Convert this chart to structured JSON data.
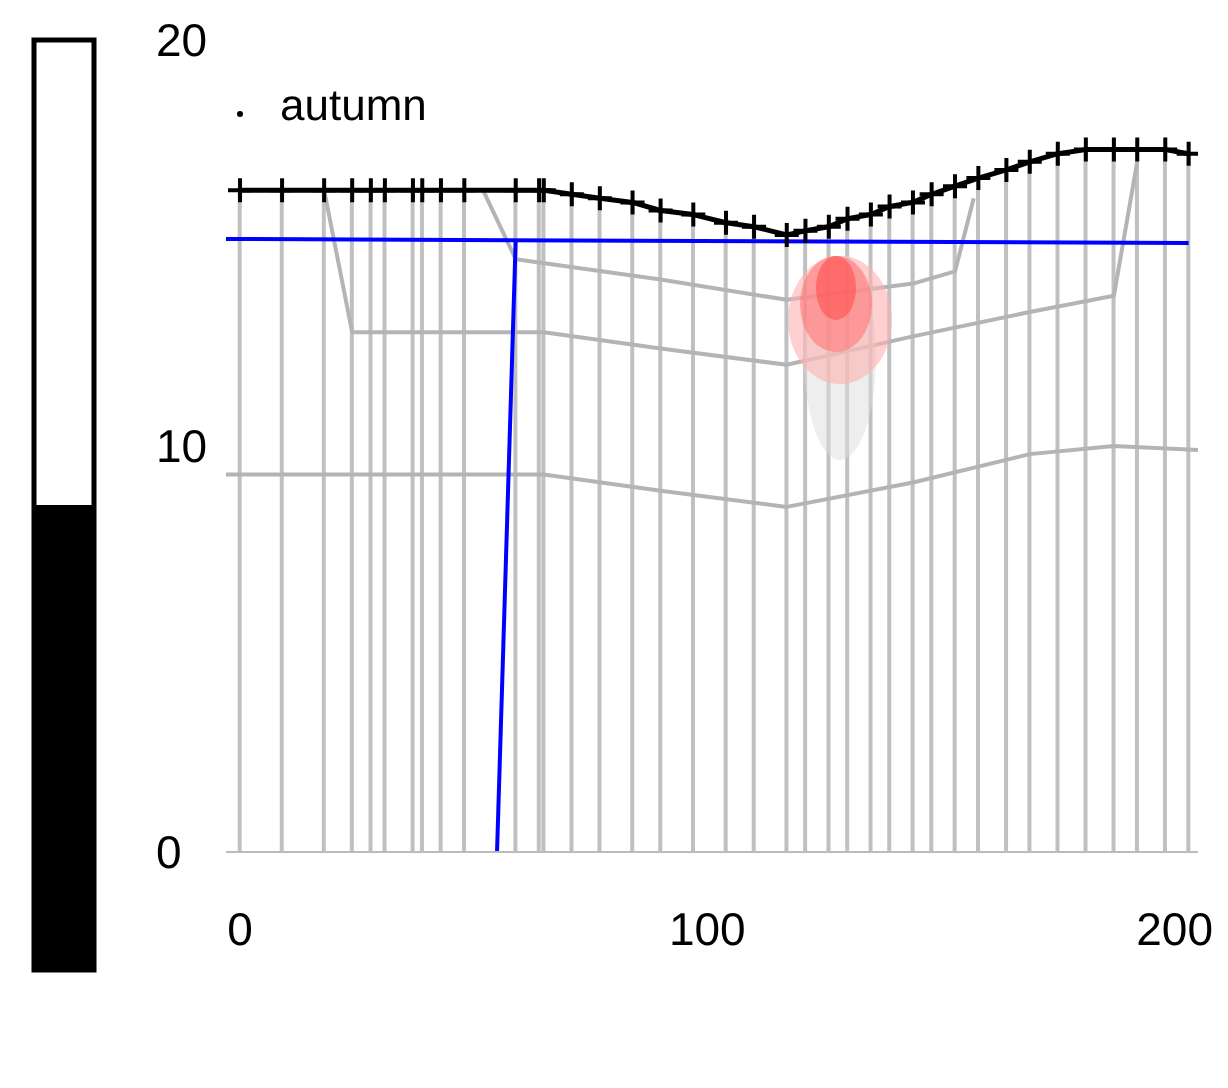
{
  "chart_data": {
    "type": "line",
    "annotations": [
      "autumn"
    ],
    "xlim": [
      -3,
      205
    ],
    "xticks": [
      0,
      100,
      200
    ],
    "ylim": [
      0,
      20
    ],
    "yticks": [
      0,
      10,
      20
    ],
    "series": [
      {
        "type": "bar",
        "color": "#c0c0c0",
        "x": [
          0,
          9,
          18,
          24,
          28,
          31,
          37,
          39,
          43,
          48,
          59,
          64,
          65,
          71,
          77,
          84,
          90,
          97,
          104,
          110,
          117,
          121,
          126,
          130,
          135,
          139,
          144,
          148,
          153,
          158,
          164,
          169,
          175,
          181,
          187,
          192,
          198,
          203
        ],
        "values": [
          16.3,
          16.3,
          16.3,
          16.3,
          16.3,
          16.3,
          16.3,
          16.3,
          16.3,
          16.3,
          16.3,
          16.3,
          16.3,
          16.2,
          16.1,
          16.0,
          15.8,
          15.7,
          15.5,
          15.4,
          15.2,
          15.3,
          15.4,
          15.6,
          15.7,
          15.9,
          16.0,
          16.2,
          16.4,
          16.6,
          16.8,
          17.0,
          17.2,
          17.3,
          17.3,
          17.3,
          17.3,
          17.2
        ]
      },
      {
        "color": "#b4b4b4",
        "marker": "none",
        "x": [
          -3,
          65,
          90,
          117,
          144,
          169,
          187,
          205
        ],
        "values": [
          9.3,
          9.3,
          8.9,
          8.5,
          9.1,
          9.8,
          10.0,
          9.9
        ]
      },
      {
        "color": "#b4b4b4",
        "marker": "none",
        "x": [
          18,
          24,
          65,
          90,
          117,
          144,
          169,
          187,
          192
        ],
        "values": [
          16.3,
          12.8,
          12.8,
          12.4,
          12.0,
          12.7,
          13.3,
          13.7,
          17.0
        ]
      },
      {
        "color": "#b4b4b4",
        "marker": "none",
        "x": [
          52,
          59,
          90,
          117,
          144,
          153,
          157
        ],
        "values": [
          16.3,
          14.6,
          14.1,
          13.6,
          14.0,
          14.3,
          16.1
        ]
      },
      {
        "color": "#0000ff",
        "marker": "none",
        "x": [
          -3,
          203
        ],
        "values": [
          15.1,
          15.0
        ]
      },
      {
        "color": "#0000ff",
        "marker": "none",
        "x": [
          59,
          55
        ],
        "values": [
          15.1,
          0
        ]
      },
      {
        "color": "#000000",
        "marker": "cross",
        "x": [
          0,
          9,
          18,
          24,
          28,
          31,
          37,
          39,
          43,
          48,
          59,
          64,
          65,
          71,
          77,
          84,
          90,
          97,
          104,
          110,
          117,
          121,
          126,
          130,
          135,
          139,
          144,
          148,
          153,
          158,
          164,
          169,
          175,
          181,
          187,
          192,
          198,
          203
        ],
        "values": [
          16.3,
          16.3,
          16.3,
          16.3,
          16.3,
          16.3,
          16.3,
          16.3,
          16.3,
          16.3,
          16.3,
          16.3,
          16.3,
          16.2,
          16.1,
          16.0,
          15.8,
          15.7,
          15.5,
          15.4,
          15.2,
          15.3,
          15.4,
          15.6,
          15.7,
          15.9,
          16.0,
          16.2,
          16.4,
          16.6,
          16.8,
          17.0,
          17.2,
          17.3,
          17.3,
          17.3,
          17.3,
          17.2
        ]
      }
    ]
  }
}
